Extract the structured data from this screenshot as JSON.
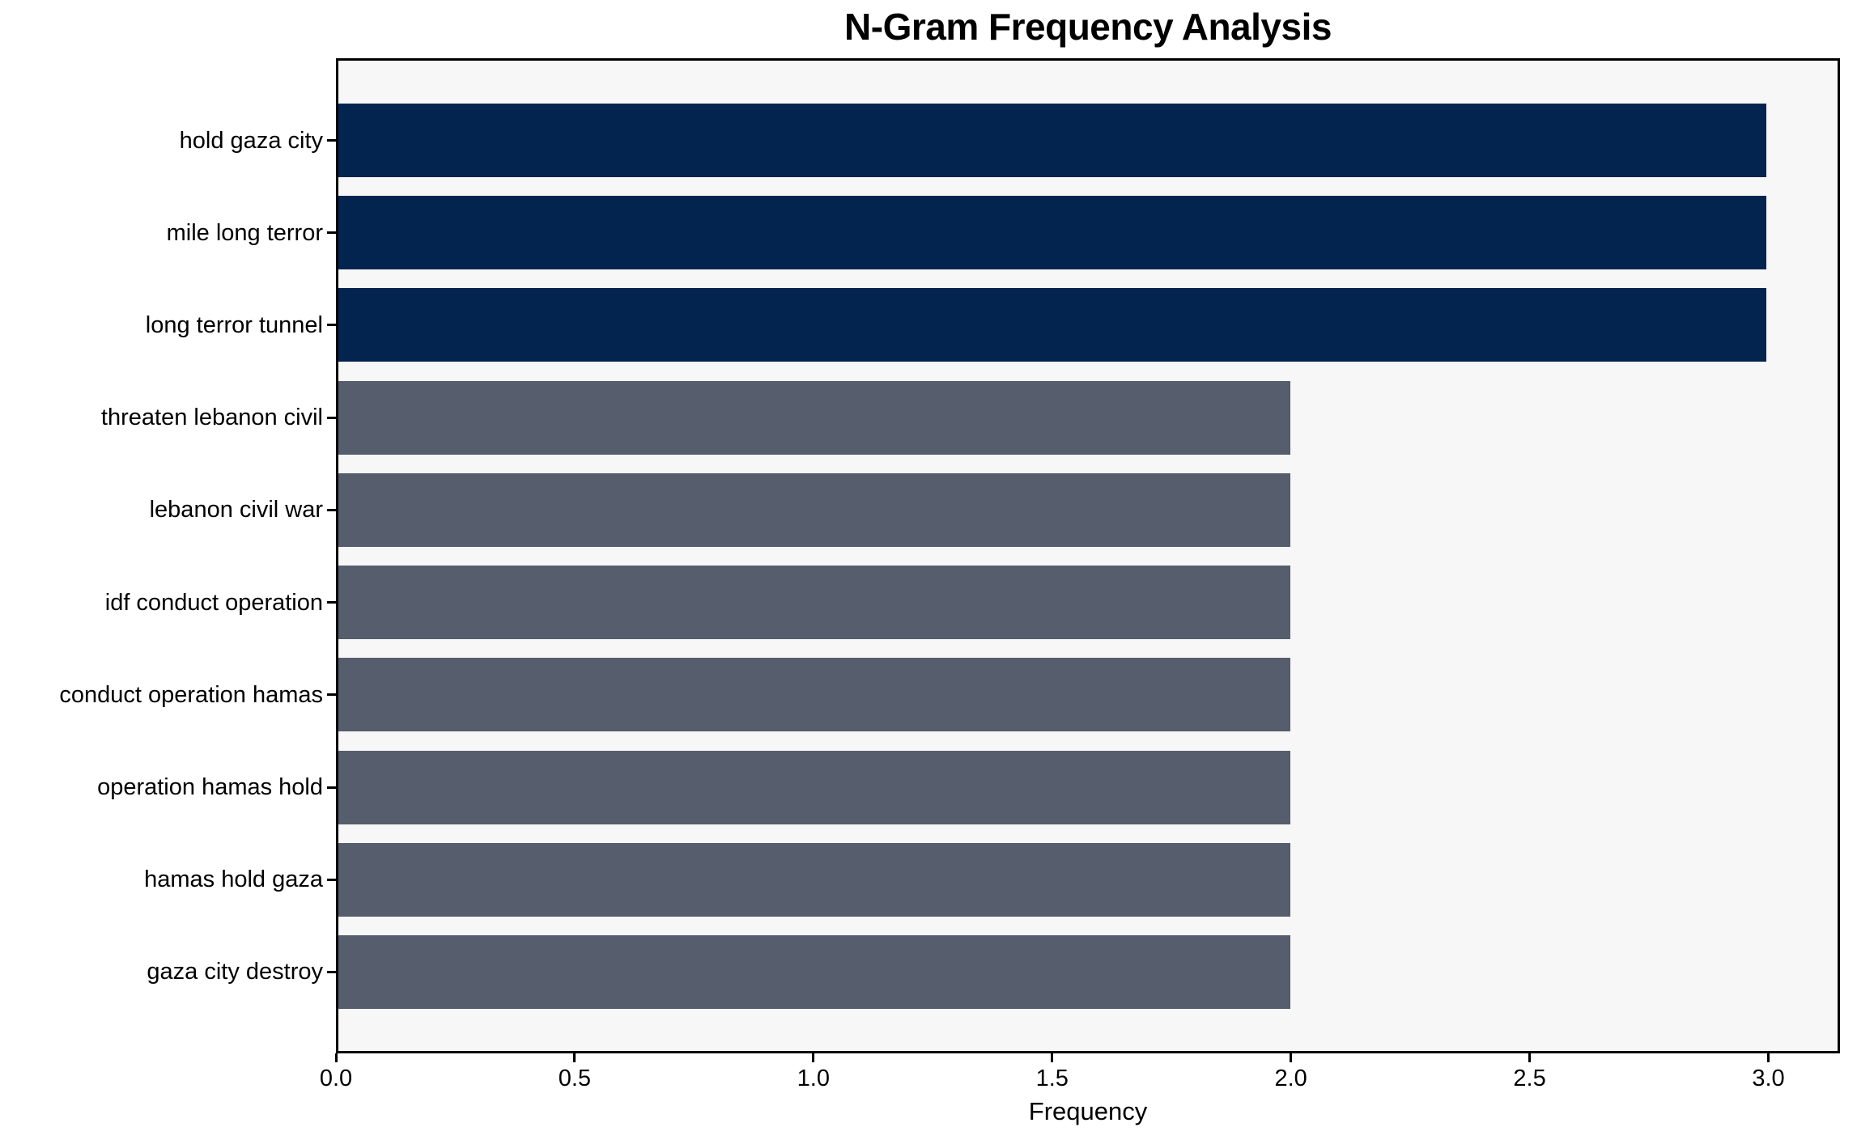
{
  "title": "N-Gram Frequency Analysis",
  "chart_data": {
    "type": "bar",
    "orientation": "horizontal",
    "title": "N-Gram Frequency Analysis",
    "xlabel": "Frequency",
    "ylabel": "",
    "categories": [
      "hold gaza city",
      "mile long terror",
      "long terror tunnel",
      "threaten lebanon civil",
      "lebanon civil war",
      "idf conduct operation",
      "conduct operation hamas",
      "operation hamas hold",
      "hamas hold gaza",
      "gaza city destroy"
    ],
    "values": [
      3,
      3,
      3,
      2,
      2,
      2,
      2,
      2,
      2,
      2
    ],
    "xlim": [
      0,
      3.15
    ],
    "x_ticks": [
      0.0,
      0.5,
      1.0,
      1.5,
      2.0,
      2.5,
      3.0
    ],
    "x_tick_labels": [
      "0.0",
      "0.5",
      "1.0",
      "1.5",
      "2.0",
      "2.5",
      "3.0"
    ],
    "grid": false,
    "legend": "none",
    "colors": {
      "plot_background": "#f7f7f7",
      "figure_background": "#ffffff",
      "spine": "#000000",
      "text": "#000000",
      "high_bar": "#03244e",
      "low_bar": "#565d6c",
      "bar_color_by_index": [
        "#03244e",
        "#03244e",
        "#03244e",
        "#565d6c",
        "#565d6c",
        "#565d6c",
        "#565d6c",
        "#565d6c",
        "#565d6c",
        "#565d6c"
      ]
    }
  }
}
